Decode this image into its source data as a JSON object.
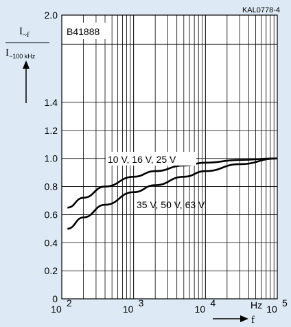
{
  "chart_data": {
    "type": "line",
    "doc_code": "KAL0778-4",
    "part_number": "B41888",
    "ylabel_num": "I",
    "ylabel_num_sub": "~f",
    "ylabel_den": "I",
    "ylabel_den_sub": "~100 kHz",
    "xlabel": "f",
    "x_unit": "Hz",
    "x_scale": "log",
    "xlim": [
      100,
      100000
    ],
    "ylim": [
      0,
      2.0
    ],
    "y_ticks": [
      "0",
      "0.2",
      "0.4",
      "0.6",
      "0.8",
      "1.0",
      "1.2",
      "1.4",
      "2.0"
    ],
    "x_ticks": [
      {
        "base": "10",
        "exp": "2"
      },
      {
        "base": "10",
        "exp": "3"
      },
      {
        "base": "10",
        "exp": "4"
      },
      {
        "base": "10",
        "exp": "5"
      }
    ],
    "grid": true,
    "series": [
      {
        "name": "10 V, 16 V, 25 V",
        "x": [
          120,
          200,
          400,
          1000,
          2000,
          5000,
          10000,
          30000,
          100000
        ],
        "y": [
          0.65,
          0.72,
          0.8,
          0.87,
          0.91,
          0.95,
          0.97,
          0.99,
          1.0
        ]
      },
      {
        "name": "35 V, 50 V, 63 V",
        "x": [
          120,
          200,
          400,
          1000,
          2000,
          5000,
          10000,
          30000,
          100000
        ],
        "y": [
          0.5,
          0.58,
          0.67,
          0.76,
          0.81,
          0.87,
          0.91,
          0.96,
          1.0
        ]
      }
    ]
  }
}
